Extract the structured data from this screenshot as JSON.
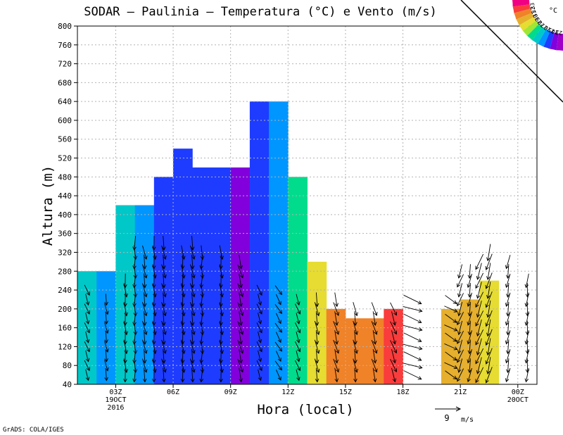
{
  "chart_data": {
    "type": "heatmap",
    "title": "SODAR – Paulinia – Temperatura (°C) e Vento (m/s)",
    "ylabel": "Altura (m)",
    "xlabel": "Hora (local)",
    "credit": "GrADS: COLA/IGES",
    "ylim": [
      40,
      800
    ],
    "y_ticks": [
      40,
      80,
      120,
      160,
      200,
      240,
      280,
      320,
      360,
      400,
      440,
      480,
      520,
      560,
      600,
      640,
      680,
      720,
      760,
      800
    ],
    "xlim": [
      0,
      24
    ],
    "x_ticks": [
      {
        "x": 2,
        "label": "03Z",
        "sub1": "19OCT",
        "sub2": "2016"
      },
      {
        "x": 5,
        "label": "06Z",
        "sub1": "",
        "sub2": ""
      },
      {
        "x": 8,
        "label": "09Z",
        "sub1": "",
        "sub2": ""
      },
      {
        "x": 11,
        "label": "12Z",
        "sub1": "",
        "sub2": ""
      },
      {
        "x": 14,
        "label": "15Z",
        "sub1": "",
        "sub2": ""
      },
      {
        "x": 17,
        "label": "18Z",
        "sub1": "",
        "sub2": ""
      },
      {
        "x": 20,
        "label": "21Z",
        "sub1": "",
        "sub2": ""
      },
      {
        "x": 23,
        "label": "00Z",
        "sub1": "20OCT",
        "sub2": ""
      }
    ],
    "color_levels": [
      23,
      24,
      25,
      26,
      27,
      28,
      29,
      30,
      31,
      32,
      33
    ],
    "colorbar_unit": "°C",
    "colors": [
      "#a000c8",
      "#8200dc",
      "#1e3cff",
      "#0096ff",
      "#00c8c8",
      "#00dc8c",
      "#a0e632",
      "#e6dc32",
      "#e6af2d",
      "#f08228",
      "#fa3c3c",
      "#f00082"
    ],
    "wind_reference": {
      "speed": 9,
      "label": "m/s"
    },
    "columns": [
      {
        "x": 0,
        "temp": 26,
        "top": 280
      },
      {
        "x": 1,
        "temp": 25,
        "top": 280
      },
      {
        "x": 2,
        "temp": 26,
        "top": 420
      },
      {
        "x": 3,
        "temp": 25,
        "top": 420
      },
      {
        "x": 4,
        "temp": 24,
        "top": 480
      },
      {
        "x": 5,
        "temp": 24,
        "top": 540
      },
      {
        "x": 6,
        "temp": 24,
        "top": 500
      },
      {
        "x": 7,
        "temp": 24,
        "top": 500
      },
      {
        "x": 8,
        "temp": 23,
        "top": 500
      },
      {
        "x": 9,
        "temp": 24,
        "top": 640
      },
      {
        "x": 10,
        "temp": 25,
        "top": 640
      },
      {
        "x": 11,
        "temp": 27,
        "top": 480
      },
      {
        "x": 12,
        "temp": 29,
        "top": 300
      },
      {
        "x": 13,
        "temp": 31,
        "top": 200
      },
      {
        "x": 14,
        "temp": 31,
        "top": 180
      },
      {
        "x": 15,
        "temp": 31,
        "top": 180
      },
      {
        "x": 16,
        "temp": 32,
        "top": 200
      },
      {
        "x": 17,
        "temp": null,
        "top": 40
      },
      {
        "x": 18,
        "temp": null,
        "top": 40
      },
      {
        "x": 19,
        "temp": 30,
        "top": 200
      },
      {
        "x": 20,
        "temp": 30,
        "top": 220
      },
      {
        "x": 21,
        "temp": 29,
        "top": 260
      },
      {
        "x": 22,
        "temp": null,
        "top": 40
      },
      {
        "x": 23,
        "temp": null,
        "top": 40
      }
    ],
    "wind_columns": [
      {
        "x": 0.5,
        "dir": 160,
        "speed": 4,
        "top": 240
      },
      {
        "x": 1.5,
        "dir": 170,
        "speed": 4,
        "top": 220
      },
      {
        "x": 2.5,
        "dir": 175,
        "speed": 5,
        "top": 260
      },
      {
        "x": 3.0,
        "dir": 180,
        "speed": 5,
        "top": 340
      },
      {
        "x": 3.5,
        "dir": 170,
        "speed": 5,
        "top": 330
      },
      {
        "x": 4.0,
        "dir": 175,
        "speed": 5,
        "top": 340
      },
      {
        "x": 4.5,
        "dir": 170,
        "speed": 5,
        "top": 340
      },
      {
        "x": 5.5,
        "dir": 175,
        "speed": 5,
        "top": 320
      },
      {
        "x": 6.0,
        "dir": 170,
        "speed": 5,
        "top": 340
      },
      {
        "x": 6.5,
        "dir": 180,
        "speed": 5,
        "top": 320
      },
      {
        "x": 7.5,
        "dir": 175,
        "speed": 5,
        "top": 320
      },
      {
        "x": 8.5,
        "dir": 165,
        "speed": 5,
        "top": 300
      },
      {
        "x": 9.5,
        "dir": 160,
        "speed": 4,
        "top": 240
      },
      {
        "x": 10.5,
        "dir": 150,
        "speed": 4,
        "top": 240
      },
      {
        "x": 11.5,
        "dir": 160,
        "speed": 4,
        "top": 220
      },
      {
        "x": 12.5,
        "dir": 170,
        "speed": 5,
        "top": 220
      },
      {
        "x": 13.5,
        "dir": 165,
        "speed": 5,
        "top": 220
      },
      {
        "x": 14.5,
        "dir": 170,
        "speed": 5,
        "top": 200
      },
      {
        "x": 15.5,
        "dir": 165,
        "speed": 5,
        "top": 200
      },
      {
        "x": 16.5,
        "dir": 160,
        "speed": 5,
        "top": 200
      },
      {
        "x": 17.5,
        "dir": 110,
        "speed": 7,
        "top": 220
      },
      {
        "x": 19.5,
        "dir": 120,
        "speed": 5,
        "top": 220
      },
      {
        "x": 20.0,
        "dir": 200,
        "speed": 5,
        "top": 280
      },
      {
        "x": 20.5,
        "dir": 190,
        "speed": 5,
        "top": 280
      },
      {
        "x": 21.0,
        "dir": 200,
        "speed": 6,
        "top": 300
      },
      {
        "x": 21.5,
        "dir": 195,
        "speed": 6,
        "top": 320
      },
      {
        "x": 22.5,
        "dir": 190,
        "speed": 5,
        "top": 300
      },
      {
        "x": 23.5,
        "dir": 185,
        "speed": 5,
        "top": 260
      }
    ]
  }
}
